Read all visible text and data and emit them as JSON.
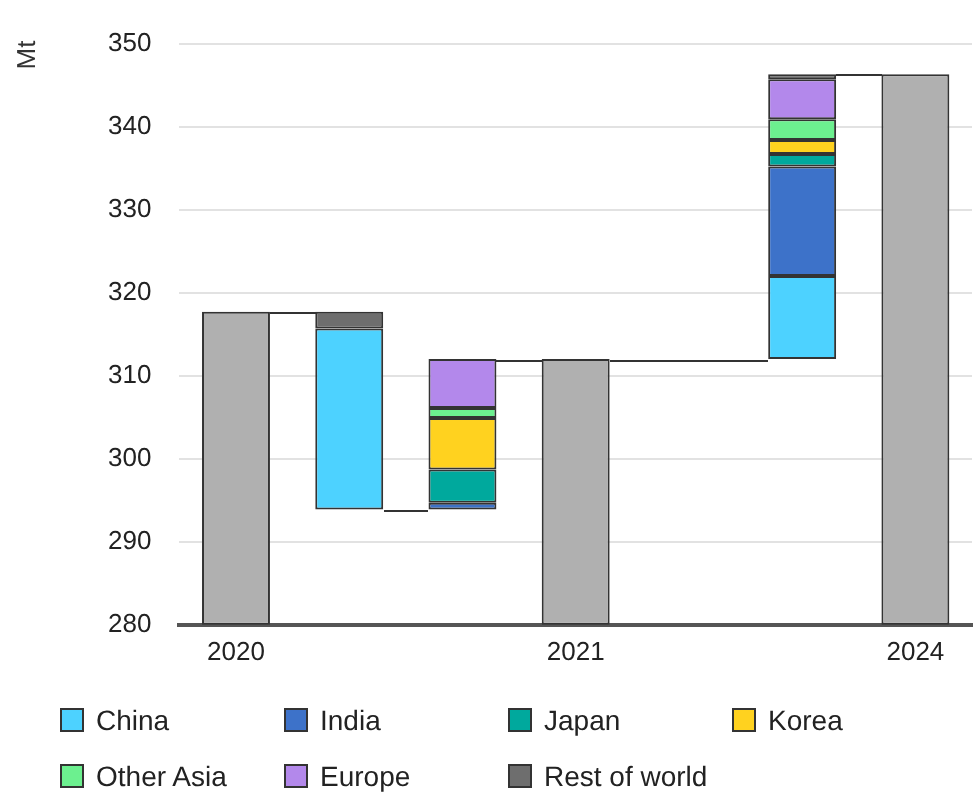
{
  "chart_data": {
    "type": "bar",
    "ylabel": "Mt",
    "categories": [
      "2020",
      null,
      null,
      "2021",
      null,
      null,
      "2024"
    ],
    "series": [
      {
        "color": "#b0b0b0",
        "base": [
          280,
          null,
          null,
          280,
          null,
          null,
          280
        ],
        "values": [
          37.7,
          null,
          null,
          32,
          null,
          null,
          66.3
        ]
      },
      {
        "name": "China",
        "color": "#4dd2ff",
        "base": [
          null,
          293.9,
          null,
          null,
          null,
          312,
          null
        ],
        "values": [
          null,
          21.8,
          null,
          null,
          null,
          10,
          null
        ]
      },
      {
        "name": "India",
        "color": "#3d72c9",
        "base": [
          null,
          null,
          293.9,
          null,
          null,
          322,
          null
        ],
        "values": [
          null,
          null,
          0.8,
          null,
          null,
          13.2,
          null
        ]
      },
      {
        "name": "Japan",
        "color": "#00a99d",
        "base": [
          null,
          null,
          294.7,
          null,
          null,
          335.2,
          null
        ],
        "values": [
          null,
          null,
          4,
          null,
          null,
          1.5,
          null
        ]
      },
      {
        "name": "Korea",
        "color": "#ffd21f",
        "base": [
          null,
          null,
          298.7,
          null,
          null,
          336.7,
          null
        ],
        "values": [
          null,
          null,
          6.2,
          null,
          null,
          1.7,
          null
        ]
      },
      {
        "name": "Other Asia",
        "color": "#6cf08f",
        "base": [
          null,
          null,
          304.9,
          null,
          null,
          338.4,
          null
        ],
        "values": [
          null,
          null,
          1.2,
          null,
          null,
          2.5,
          null
        ]
      },
      {
        "name": "Europe",
        "color": "#b388eb",
        "base": [
          null,
          null,
          306.1,
          null,
          null,
          340.9,
          null
        ],
        "values": [
          null,
          null,
          5.9,
          null,
          null,
          4.8,
          null
        ]
      },
      {
        "name": "Rest of world",
        "color": "#6e6e6e",
        "base": [
          null,
          315.7,
          null,
          null,
          null,
          345.7,
          null
        ],
        "values": [
          null,
          2,
          null,
          null,
          null,
          0.6,
          null
        ]
      }
    ],
    "ylim": [
      280,
      350
    ],
    "yticks": [
      280,
      290,
      300,
      310,
      320,
      330,
      340,
      350
    ],
    "grid": "y",
    "legend": "bottom"
  }
}
